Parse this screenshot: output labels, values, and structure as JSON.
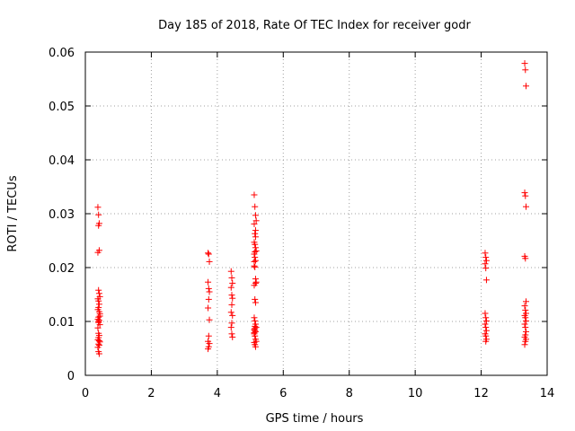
{
  "chart_data": {
    "type": "scatter",
    "title": "Day 185 of 2018, Rate Of TEC Index for receiver godr",
    "xlabel": "GPS time / hours",
    "ylabel": "ROTI / TECUs",
    "xlim": [
      0,
      14
    ],
    "ylim": [
      0,
      0.06
    ],
    "xticks": [
      0,
      2,
      4,
      6,
      8,
      10,
      12,
      14
    ],
    "xtick_labels": [
      "0",
      "2",
      "4",
      "6",
      "8",
      "10",
      "12",
      "14"
    ],
    "yticks": [
      0,
      0.01,
      0.02,
      0.03,
      0.04,
      0.05,
      0.06
    ],
    "ytick_labels": [
      "0",
      "0.01",
      "0.02",
      "0.03",
      "0.04",
      "0.05",
      "0.06"
    ],
    "grid": true,
    "marker": "+",
    "color": "#ff0000",
    "series": [
      {
        "name": "ROTI",
        "x": [
          0.38,
          0.4,
          0.42,
          0.4,
          0.42,
          0.38,
          0.4,
          0.42,
          0.44,
          0.38,
          0.4,
          0.42,
          0.4,
          0.38,
          0.42,
          0.44,
          0.4,
          0.38,
          0.42,
          0.4,
          0.44,
          0.38,
          0.4,
          0.42,
          0.4,
          0.38,
          0.42,
          0.44,
          0.4,
          0.42,
          0.38,
          0.4,
          0.42,
          0.4,
          0.44,
          3.72,
          3.74,
          3.76,
          3.72,
          3.74,
          3.76,
          3.74,
          3.72,
          3.76,
          3.74,
          3.72,
          3.76,
          3.74,
          3.72,
          4.42,
          4.44,
          4.46,
          4.42,
          4.44,
          4.46,
          4.44,
          4.42,
          4.46,
          4.44,
          4.42,
          4.44,
          4.46,
          5.12,
          5.14,
          5.16,
          5.18,
          5.12,
          5.14,
          5.16,
          5.12,
          5.14,
          5.16,
          5.18,
          5.12,
          5.14,
          5.16,
          5.12,
          5.14,
          5.16,
          5.18,
          5.12,
          5.14,
          5.16,
          5.12,
          5.14,
          5.16,
          5.18,
          5.12,
          5.14,
          5.16,
          5.12,
          5.14,
          5.16,
          5.18,
          5.12,
          5.14,
          5.16,
          5.14,
          5.12,
          5.16,
          5.14,
          5.12,
          5.16,
          5.14,
          12.12,
          12.14,
          12.16,
          12.12,
          12.14,
          12.16,
          12.12,
          12.14,
          12.16,
          12.12,
          12.14,
          12.16,
          12.12,
          12.14,
          12.16,
          12.14,
          13.32,
          13.34,
          13.36,
          13.32,
          13.34,
          13.36,
          13.32,
          13.34,
          13.36,
          13.32,
          13.34,
          13.36,
          13.32,
          13.34,
          13.36,
          13.32,
          13.34,
          13.36,
          13.34,
          13.32,
          13.36,
          13.34,
          13.32
        ],
        "y": [
          0.0312,
          0.0298,
          0.0282,
          0.0278,
          0.0232,
          0.0228,
          0.0158,
          0.0152,
          0.0146,
          0.0142,
          0.0138,
          0.0132,
          0.0126,
          0.0122,
          0.0118,
          0.0114,
          0.0108,
          0.0104,
          0.0102,
          0.0098,
          0.0094,
          0.0088,
          0.0078,
          0.0074,
          0.007,
          0.0066,
          0.0064,
          0.0062,
          0.0058,
          0.0056,
          0.0052,
          0.0044,
          0.004,
          0.01,
          0.011,
          0.0227,
          0.0225,
          0.0211,
          0.0173,
          0.0161,
          0.0155,
          0.0141,
          0.0125,
          0.0103,
          0.0073,
          0.0063,
          0.0059,
          0.0053,
          0.0049,
          0.0193,
          0.0181,
          0.0171,
          0.0163,
          0.0149,
          0.0143,
          0.0131,
          0.0117,
          0.0111,
          0.0097,
          0.0089,
          0.0077,
          0.0071,
          0.0335,
          0.0313,
          0.0297,
          0.0287,
          0.0281,
          0.0263,
          0.0257,
          0.0247,
          0.0243,
          0.0237,
          0.0231,
          0.0225,
          0.0219,
          0.0213,
          0.0203,
          0.0201,
          0.0179,
          0.0173,
          0.0167,
          0.0141,
          0.0135,
          0.0107,
          0.0101,
          0.0095,
          0.0089,
          0.0085,
          0.0083,
          0.0081,
          0.0077,
          0.0073,
          0.0067,
          0.0063,
          0.0061,
          0.0057,
          0.0053,
          0.0091,
          0.0079,
          0.0269,
          0.0229,
          0.0211,
          0.0171,
          0.0087,
          0.0227,
          0.0219,
          0.0213,
          0.0207,
          0.0199,
          0.0177,
          0.0115,
          0.0107,
          0.0101,
          0.0095,
          0.0089,
          0.0083,
          0.0077,
          0.0073,
          0.0067,
          0.0063,
          0.0579,
          0.0567,
          0.0537,
          0.0339,
          0.0333,
          0.0313,
          0.0221,
          0.0217,
          0.0137,
          0.0129,
          0.0121,
          0.0115,
          0.0111,
          0.0107,
          0.0101,
          0.0095,
          0.0089,
          0.0081,
          0.0075,
          0.0071,
          0.0067,
          0.0063,
          0.0057
        ]
      }
    ]
  }
}
